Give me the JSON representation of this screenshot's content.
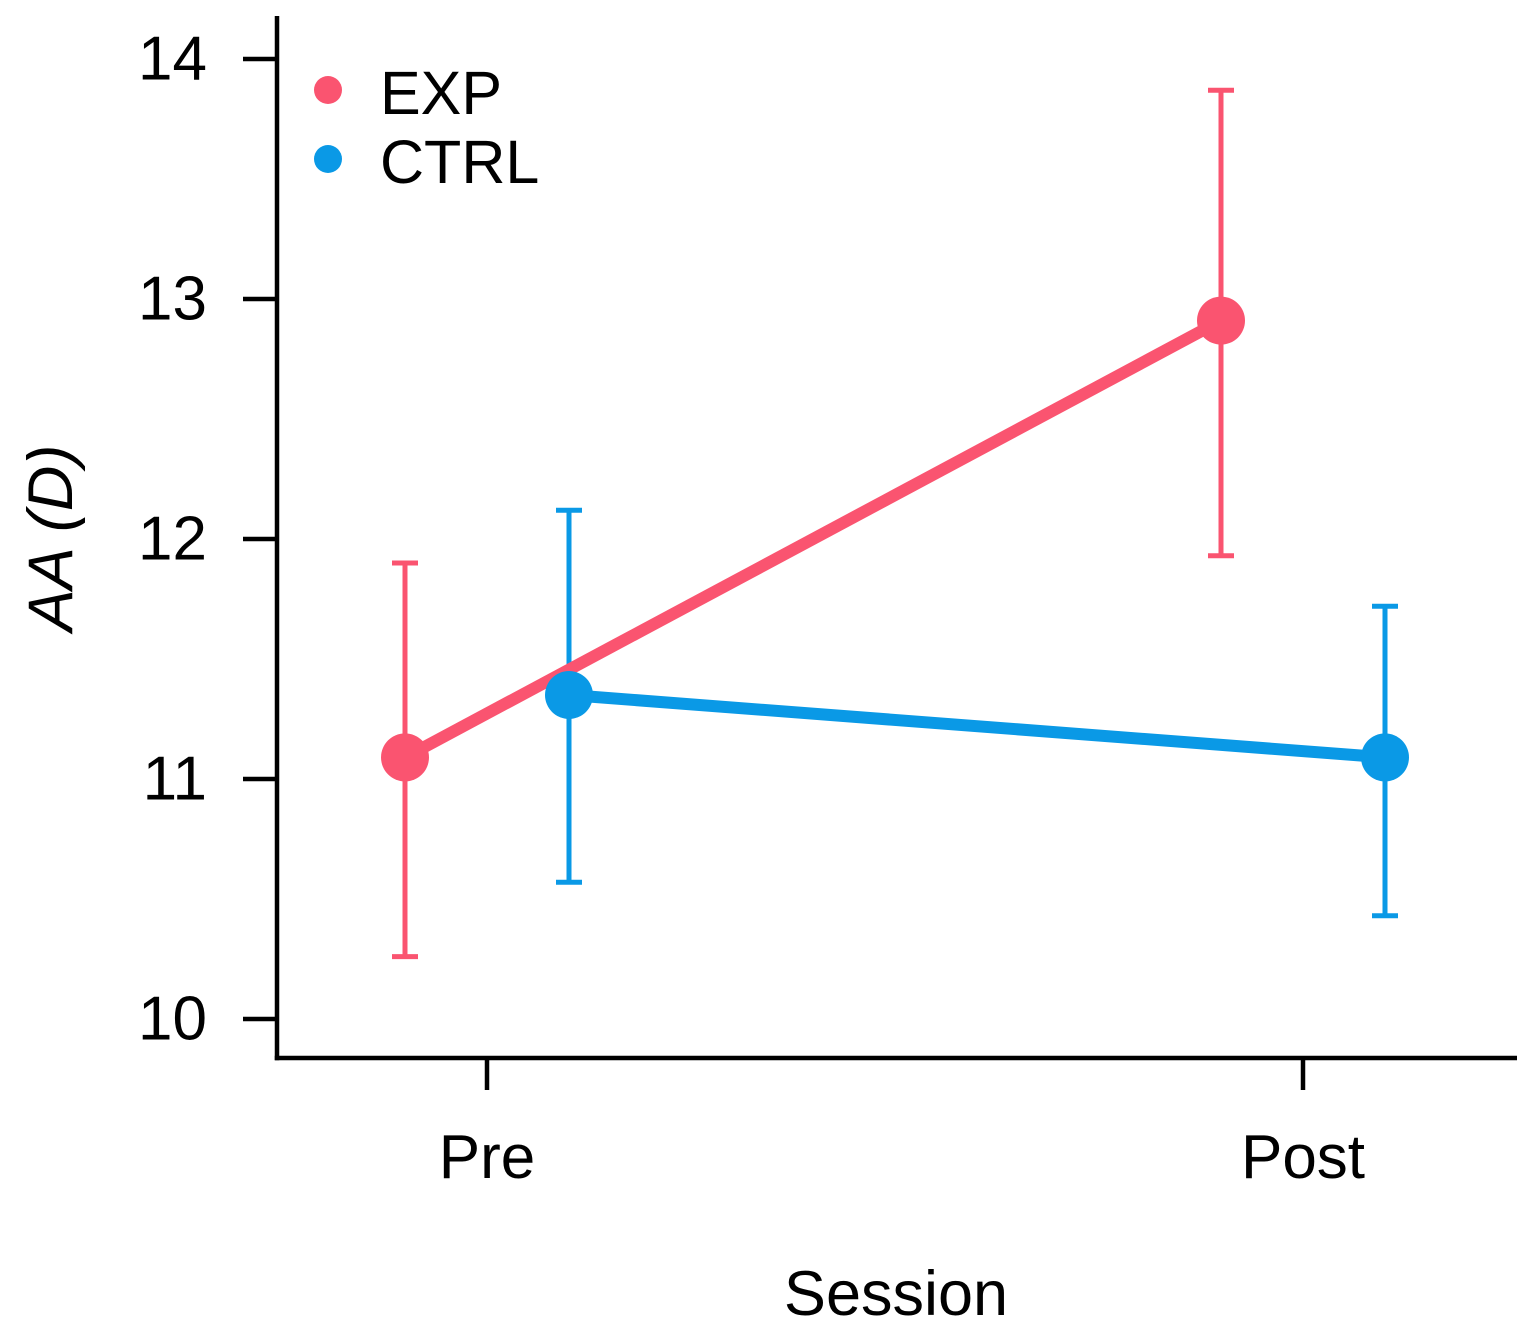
{
  "figure": {
    "background": "#ffffff",
    "axis_color": "#000000",
    "text_color": "#000000"
  },
  "chart_data": {
    "type": "line",
    "title": "",
    "xlabel": "Session",
    "ylabel": "AA (D)",
    "categories": [
      "Pre",
      "Post"
    ],
    "yticks": [
      10,
      11,
      12,
      13,
      14
    ],
    "ylim": [
      9.8,
      14.2
    ],
    "grid": false,
    "error_bars": true,
    "legend_position": "top-left-inside",
    "series": [
      {
        "name": "EXP",
        "color": "#FA5470",
        "means": [
          11.09,
          12.91
        ],
        "ci_low": [
          10.26,
          11.93
        ],
        "ci_high": [
          11.9,
          13.87
        ]
      },
      {
        "name": "CTRL",
        "color": "#0A99E6",
        "means": [
          11.35,
          11.09
        ],
        "ci_low": [
          10.57,
          10.43
        ],
        "ci_high": [
          12.12,
          11.72
        ]
      }
    ]
  }
}
